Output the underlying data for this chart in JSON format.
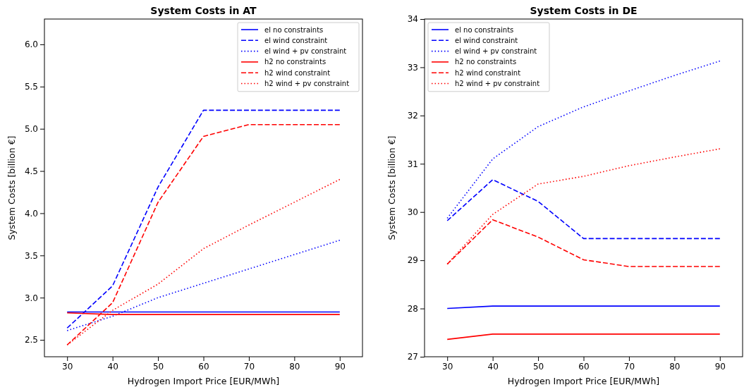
{
  "chart_data": [
    {
      "type": "line",
      "title": "System Costs in AT",
      "xlabel": "Hydrogen Import Price [EUR/MWh]",
      "ylabel": "System Costs [billion €]",
      "x": [
        30,
        40,
        50,
        60,
        70,
        80,
        90
      ],
      "xlim": [
        25,
        95
      ],
      "xticks": [
        30,
        40,
        50,
        60,
        70,
        80,
        90
      ],
      "ylim": [
        2.3,
        6.3
      ],
      "yticks": [
        {
          "value": 2.5,
          "label": "2.5"
        },
        {
          "value": 3,
          "label": "3.0"
        },
        {
          "value": 3.5,
          "label": "3.5"
        },
        {
          "value": 4,
          "label": "4.0"
        },
        {
          "value": 4.5,
          "label": "4.5"
        },
        {
          "value": 5,
          "label": "5.0"
        },
        {
          "value": 5.5,
          "label": "5.5"
        },
        {
          "value": 6,
          "label": "6.0"
        }
      ],
      "legend": "top right",
      "grid": false,
      "series": [
        {
          "name": "el no constraints",
          "color": "#0000ff",
          "line_style": "solid",
          "values": [
            2.83,
            2.83,
            2.83,
            2.83,
            2.83,
            2.83,
            2.83
          ]
        },
        {
          "name": "el wind constraint",
          "color": "#0000ff",
          "line_style": "dashed",
          "values": [
            2.64,
            3.14,
            4.31,
            5.22,
            5.22,
            5.22,
            5.22
          ]
        },
        {
          "name": "el wind + pv constraint",
          "color": "#0000ff",
          "line_style": "dotted",
          "values": [
            2.61,
            2.78,
            3.0,
            3.17,
            3.34,
            3.51,
            3.68
          ]
        },
        {
          "name": "h2 no constraints",
          "color": "#ff0000",
          "line_style": "solid",
          "values": [
            2.82,
            2.8,
            2.8,
            2.8,
            2.8,
            2.8,
            2.8
          ]
        },
        {
          "name": "h2 wind constraint",
          "color": "#ff0000",
          "line_style": "dashed",
          "values": [
            2.44,
            2.94,
            4.13,
            4.91,
            5.05,
            5.05,
            5.05
          ]
        },
        {
          "name": "h2 wind + pv constraint",
          "color": "#ff0000",
          "line_style": "dotted",
          "values": [
            2.44,
            2.85,
            3.16,
            3.58,
            3.86,
            4.13,
            4.4
          ]
        }
      ]
    },
    {
      "type": "line",
      "title": "System Costs in DE",
      "xlabel": "Hydrogen Import Price [EUR/MWh]",
      "ylabel": "System Costs [billion €]",
      "x": [
        30,
        40,
        50,
        60,
        70,
        80,
        90
      ],
      "xlim": [
        25,
        95
      ],
      "xticks": [
        30,
        40,
        50,
        60,
        70,
        80,
        90
      ],
      "ylim": [
        27,
        34
      ],
      "yticks": [
        27,
        28,
        29,
        30,
        31,
        32,
        33,
        34
      ],
      "legend": "top left",
      "grid": false,
      "series": [
        {
          "name": "el no constraints",
          "color": "#0000ff",
          "line_style": "solid",
          "values": [
            28.0,
            28.05,
            28.05,
            28.05,
            28.05,
            28.05,
            28.05
          ]
        },
        {
          "name": "el wind constraint",
          "color": "#0000ff",
          "line_style": "dashed",
          "values": [
            29.82,
            30.67,
            30.22,
            29.45,
            29.45,
            29.45,
            29.45
          ]
        },
        {
          "name": "el wind + pv constraint",
          "color": "#0000ff",
          "line_style": "dotted",
          "values": [
            29.87,
            31.1,
            31.77,
            32.18,
            32.51,
            32.83,
            33.13
          ]
        },
        {
          "name": "h2 no constraints",
          "color": "#ff0000",
          "line_style": "solid",
          "values": [
            27.36,
            27.47,
            27.47,
            27.47,
            27.47,
            27.47,
            27.47
          ]
        },
        {
          "name": "h2 wind constraint",
          "color": "#ff0000",
          "line_style": "dashed",
          "values": [
            28.92,
            29.84,
            29.48,
            29.01,
            28.87,
            28.87,
            28.87
          ]
        },
        {
          "name": "h2 wind + pv constraint",
          "color": "#ff0000",
          "line_style": "dotted",
          "values": [
            28.92,
            29.95,
            30.58,
            30.74,
            30.96,
            31.14,
            31.31
          ]
        }
      ]
    }
  ]
}
